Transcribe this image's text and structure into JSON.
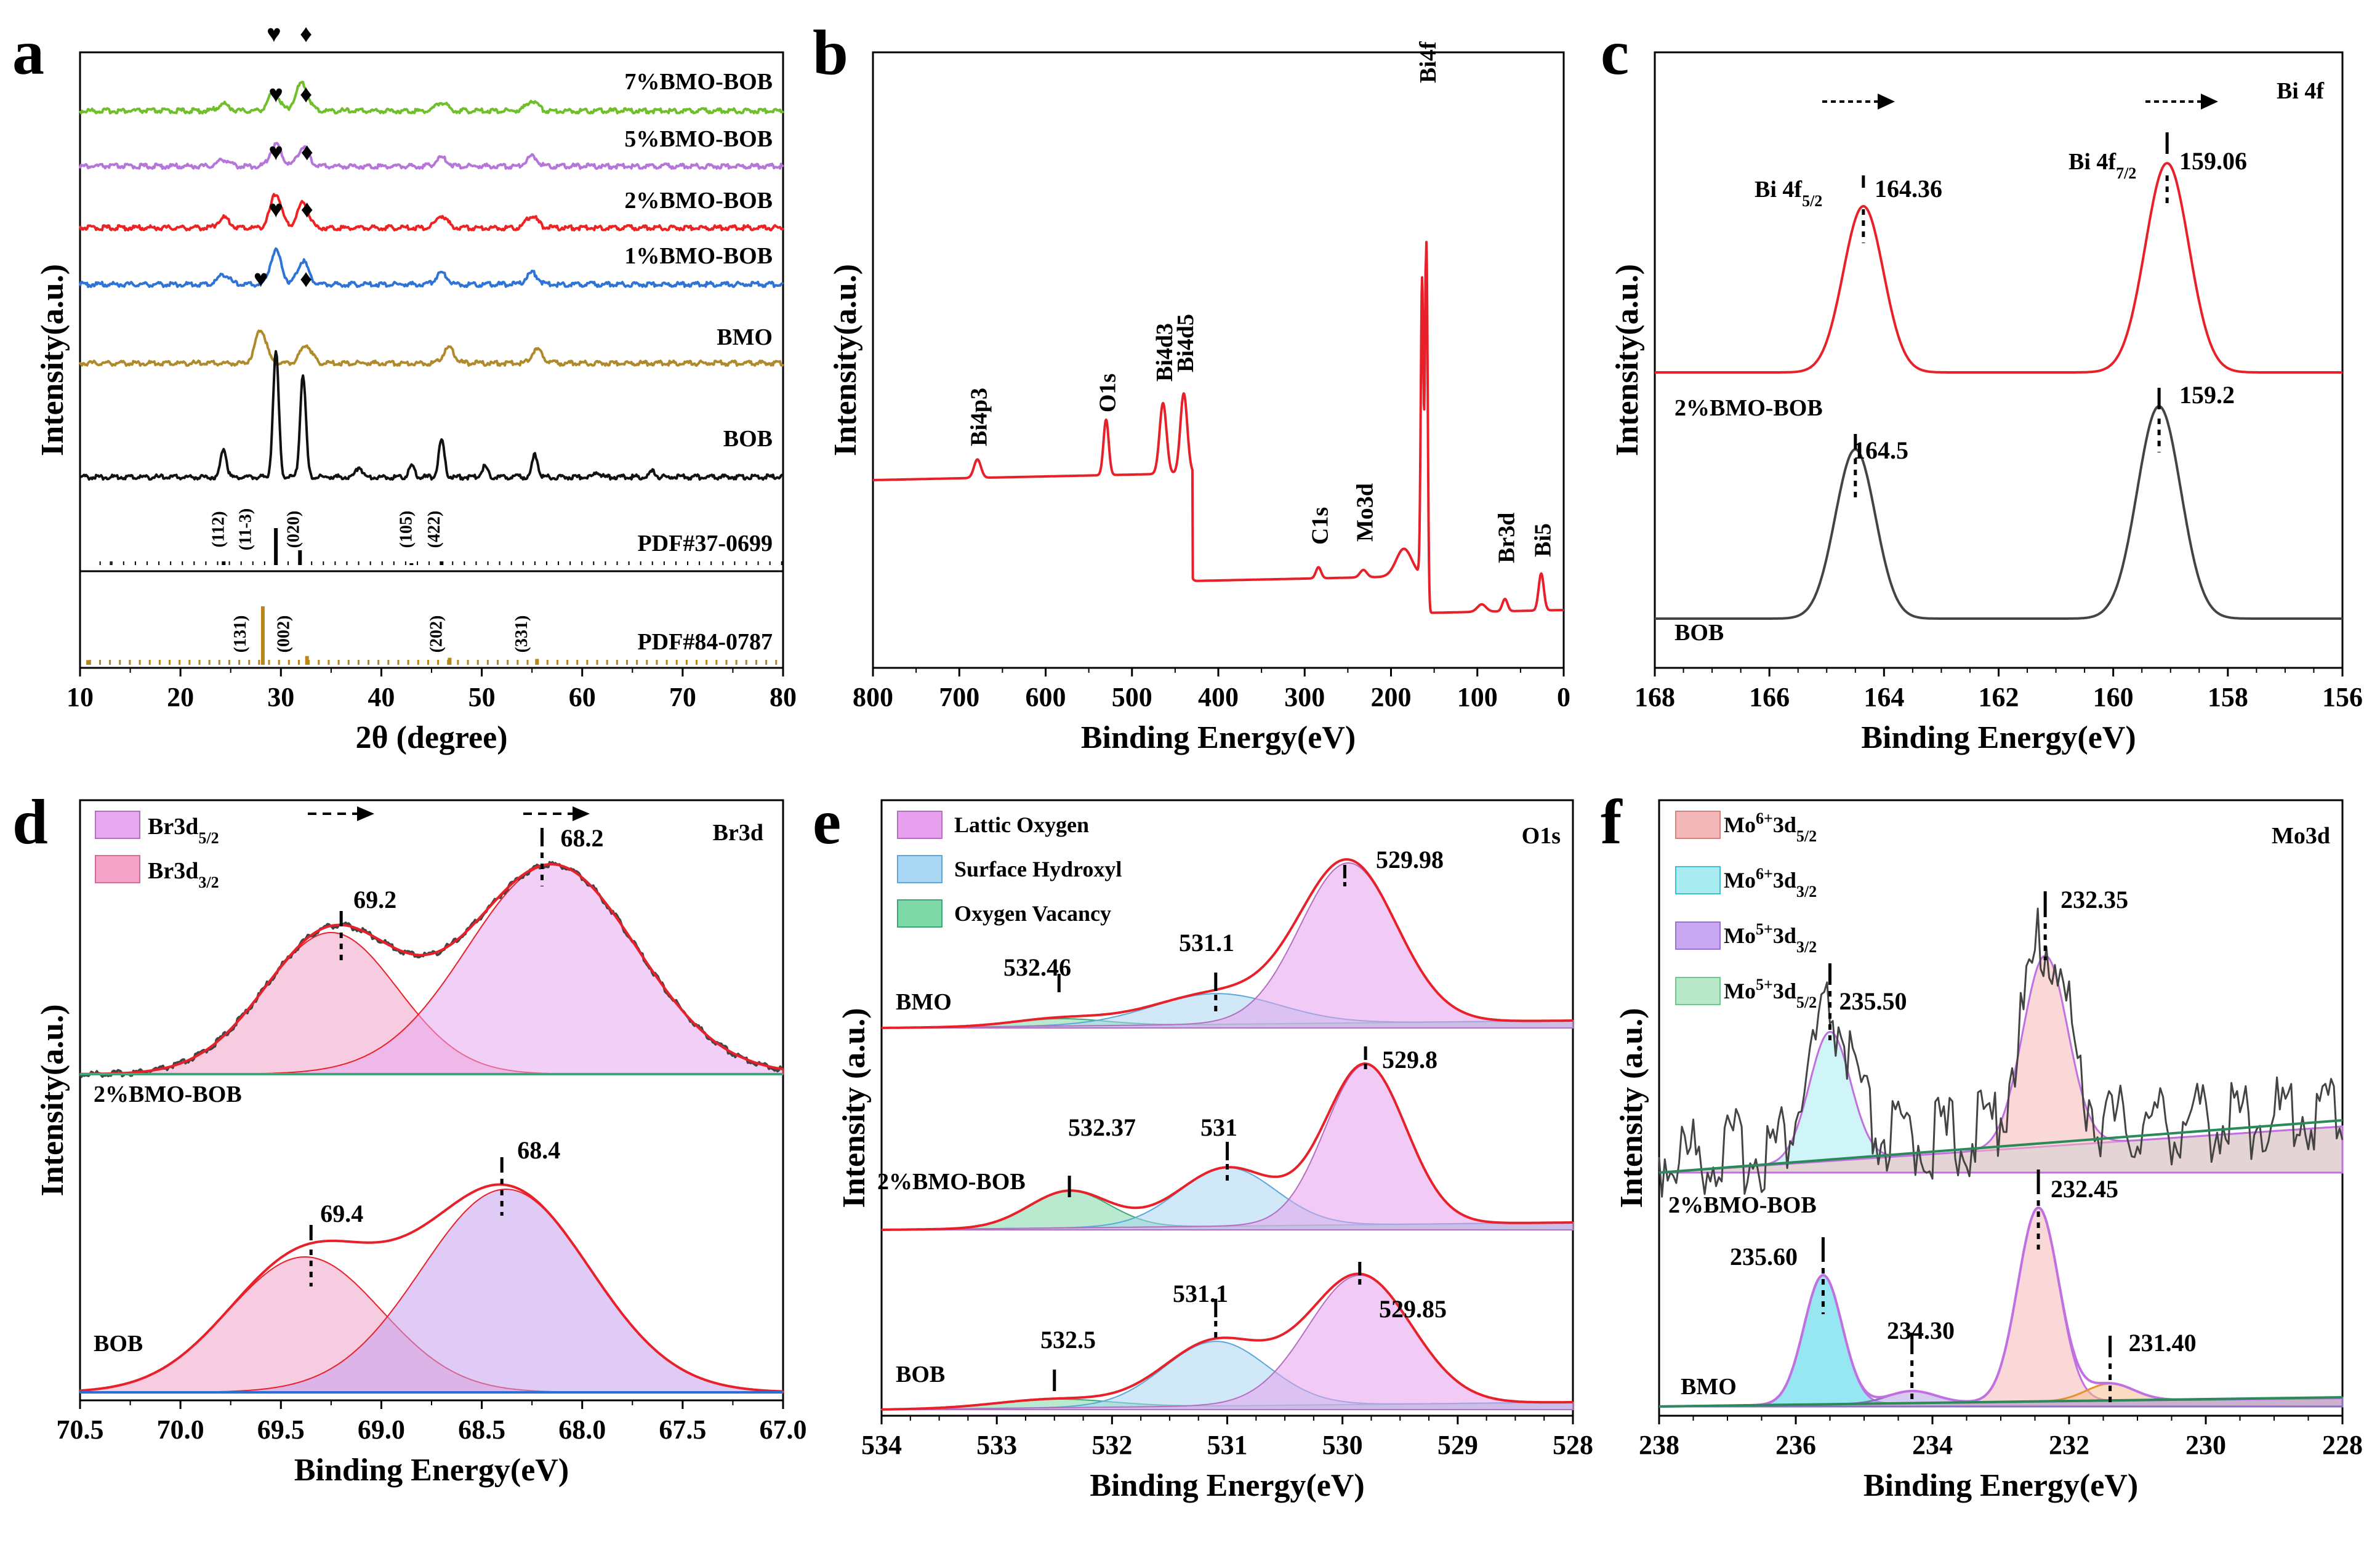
{
  "figure": {
    "colors": {
      "7%BMO-BOB": "#6fbf2a",
      "5%BMO-BOB": "#b575d9",
      "2%BMO-BOB": "#ee2222",
      "1%BMO-BOB": "#2e73d6",
      "BMO": "#b08a2a",
      "BOB": "#111111",
      "exp": "#4a4a4a",
      "fit": "#e8202a",
      "pdf2": "#b8861b"
    }
  },
  "chart_data": [
    {
      "panel": "a",
      "type": "line",
      "xlabel": "2θ (degree)",
      "ylabel": "Intensity(a.u.)",
      "xlim": [
        10,
        80
      ],
      "xticks": [
        "10",
        "20",
        "30",
        "40",
        "50",
        "60",
        "70",
        "80"
      ],
      "series": [
        {
          "name": "7%BMO-BOB",
          "color": "#6fbf2a",
          "peaks": [
            [
              24.3,
              0.2
            ],
            [
              29.3,
              0.55
            ],
            [
              31.8,
              0.4
            ],
            [
              32.3,
              0.5
            ],
            [
              46.0,
              0.25
            ],
            [
              55.0,
              0.3
            ]
          ]
        },
        {
          "name": "5%BMO-BOB",
          "color": "#b575d9",
          "peaks": [
            [
              24.3,
              0.2
            ],
            [
              29.5,
              0.65
            ],
            [
              32.2,
              0.55
            ],
            [
              46.0,
              0.25
            ],
            [
              55.0,
              0.3
            ]
          ]
        },
        {
          "name": "2%BMO-BOB",
          "color": "#ee2222",
          "peaks": [
            [
              24.3,
              0.3
            ],
            [
              29.5,
              1.0
            ],
            [
              32.2,
              0.75
            ],
            [
              46.0,
              0.35
            ],
            [
              55.0,
              0.35
            ]
          ]
        },
        {
          "name": "1%BMO-BOB",
          "color": "#2e73d6",
          "peaks": [
            [
              24.3,
              0.3
            ],
            [
              29.5,
              1.0
            ],
            [
              32.2,
              0.7
            ],
            [
              46.0,
              0.35
            ],
            [
              55.0,
              0.35
            ]
          ]
        },
        {
          "name": "BMO",
          "color": "#b08a2a",
          "peaks": [
            [
              28.0,
              1.0
            ],
            [
              32.5,
              0.55
            ],
            [
              46.7,
              0.45
            ],
            [
              55.5,
              0.4
            ]
          ]
        },
        {
          "name": "BOB",
          "color": "#111111",
          "peaks": [
            [
              24.3,
              0.8
            ],
            [
              29.5,
              3.4
            ],
            [
              32.2,
              2.8
            ],
            [
              37.8,
              0.3
            ],
            [
              43.0,
              0.3
            ],
            [
              46.0,
              1.0
            ],
            [
              50.3,
              0.3
            ],
            [
              55.3,
              0.6
            ],
            [
              61.5,
              0.15
            ],
            [
              67.0,
              0.15
            ]
          ]
        }
      ],
      "markers": {
        "heart": "♥",
        "diamond": "♦"
      },
      "pdf1": {
        "name": "PDF#37-0699",
        "hkl": [
          "(112)",
          "(11-3)",
          "(020)",
          "(105)",
          "(422)"
        ],
        "lines": [
          [
            29.5,
            1.0
          ],
          [
            31.9,
            0.4
          ],
          [
            24.3,
            0.1
          ],
          [
            46.0,
            0.1
          ],
          [
            43.0,
            0.05
          ]
        ]
      },
      "pdf2": {
        "name": "PDF#84-0787",
        "hkl": [
          "(131)",
          "(002)",
          "(202)",
          "(331)"
        ],
        "lines": [
          [
            28.2,
            1.0
          ],
          [
            32.6,
            0.15
          ],
          [
            46.8,
            0.12
          ],
          [
            55.5,
            0.1
          ],
          [
            10.8,
            0.08
          ]
        ]
      }
    },
    {
      "panel": "b",
      "type": "line",
      "xlabel": "Binding Energy(eV)",
      "ylabel": "Intensity(a.u.)",
      "xlim": [
        800,
        0
      ],
      "xticks": [
        "800",
        "700",
        "600",
        "500",
        "400",
        "300",
        "200",
        "100",
        "0"
      ],
      "peaks": [
        {
          "label": "Bi4p3",
          "x": 679
        },
        {
          "label": "O1s",
          "x": 530
        },
        {
          "label": "Bi4d3",
          "x": 464
        },
        {
          "label": "Bi4d5",
          "x": 440
        },
        {
          "label": "C1s",
          "x": 284
        },
        {
          "label": "Mo3d",
          "x": 232
        },
        {
          "label": "Bi4f",
          "x": 159
        },
        {
          "label": "Br3d",
          "x": 68
        },
        {
          "label": "Bi5",
          "x": 26
        }
      ]
    },
    {
      "panel": "c",
      "type": "line",
      "title": "Bi 4f",
      "xlabel": "Binding Energy(eV)",
      "ylabel": "Intensity(a.u.)",
      "xlim": [
        168,
        156
      ],
      "xticks": [
        "168",
        "166",
        "164",
        "162",
        "160",
        "158",
        "156"
      ],
      "series": [
        {
          "name": "2%BMO-BOB",
          "peaks": [
            164.36,
            159.06
          ],
          "labels": [
            "164.36",
            "159.06"
          ]
        },
        {
          "name": "BOB",
          "peaks": [
            164.5,
            159.2
          ],
          "labels": [
            "164.5",
            "159.2"
          ]
        }
      ],
      "annotations": {
        "a1": "Bi 4f",
        "a1sub": "5/2",
        "a2": "Bi 4f",
        "a2sub": "7/2"
      }
    },
    {
      "panel": "d",
      "type": "area",
      "title": "Br3d",
      "xlabel": "Binding Energy(eV)",
      "ylabel": "Intensity(a.u.)",
      "xlim": [
        70.5,
        67.0
      ],
      "xticks": [
        "70.5",
        "70.0",
        "69.5",
        "69.0",
        "68.5",
        "68.0",
        "67.5",
        "67.0"
      ],
      "legend": [
        {
          "base": "Br3d",
          "sub": "5/2"
        },
        {
          "base": "Br3d",
          "sub": "3/2"
        }
      ],
      "series": [
        {
          "name": "2%BMO-BOB",
          "peaks": [
            69.2,
            68.2
          ],
          "labels": [
            "69.2",
            "68.2"
          ]
        },
        {
          "name": "BOB",
          "peaks": [
            69.4,
            68.4
          ],
          "labels": [
            "69.4",
            "68.4"
          ]
        }
      ]
    },
    {
      "panel": "e",
      "type": "area",
      "title": "O1s",
      "xlabel": "Binding Energy(eV)",
      "ylabel": "Intensity (a.u.)",
      "xlim": [
        534,
        528
      ],
      "xticks": [
        "534",
        "533",
        "532",
        "531",
        "530",
        "529",
        "528"
      ],
      "legend": [
        "Lattic Oxygen",
        "Surface Hydroxyl",
        "Oxygen Vacancy"
      ],
      "series": [
        {
          "name": "BMO",
          "peaks": [
            532.46,
            531.1,
            529.98
          ],
          "labels": [
            "532.46",
            "531.1",
            "529.98"
          ]
        },
        {
          "name": "2%BMO-BOB",
          "peaks": [
            532.37,
            531,
            529.8
          ],
          "labels": [
            "532.37",
            "531",
            "529.8"
          ]
        },
        {
          "name": "BOB",
          "peaks": [
            532.5,
            531.1,
            529.85
          ],
          "labels": [
            "532.5",
            "531.1",
            "529.85"
          ]
        }
      ]
    },
    {
      "panel": "f",
      "type": "area",
      "title": "Mo3d",
      "xlabel": "Binding Energy(eV)",
      "ylabel": "Intensity (a.u.)",
      "xlim": [
        238,
        228
      ],
      "xticks": [
        "238",
        "236",
        "234",
        "232",
        "230",
        "228"
      ],
      "legend": [
        {
          "base": "Mo",
          "sup": "6+",
          "tail": "3d",
          "sub": "5/2"
        },
        {
          "base": "Mo",
          "sup": "6+",
          "tail": "3d",
          "sub": "3/2"
        },
        {
          "base": "Mo",
          "sup": "5+",
          "tail": "3d",
          "sub": "3/2"
        },
        {
          "base": "Mo",
          "sup": "5+",
          "tail": "3d",
          "sub": "5/2"
        }
      ],
      "series": [
        {
          "name": "2%BMO-BOB",
          "peaks": [
            235.5,
            232.35
          ],
          "labels": [
            "235.50",
            "232.35"
          ]
        },
        {
          "name": "BMO",
          "peaks": [
            235.6,
            234.3,
            232.45,
            231.4
          ],
          "labels": [
            "235.60",
            "234.30",
            "232.45",
            "231.40"
          ]
        }
      ]
    }
  ]
}
